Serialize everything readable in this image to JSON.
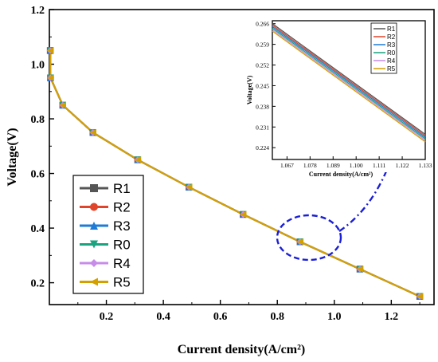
{
  "chart_data": [
    {
      "type": "line",
      "xlabel": "Current density(A/cm²)",
      "ylabel": "Voltage(V)",
      "xlim": [
        0,
        1.35
      ],
      "ylim": [
        0.12,
        1.2
      ],
      "x_ticks": [
        "0.2",
        "0.4",
        "0.6",
        "0.8",
        "1.0",
        "1.2"
      ],
      "y_ticks": [
        "0.2",
        "0.4",
        "0.6",
        "0.8",
        "1.0",
        "1.2"
      ],
      "legend": "bottom-left",
      "x": [
        0.003,
        0.004,
        0.047,
        0.153,
        0.31,
        0.49,
        0.68,
        0.88,
        1.09,
        1.3
      ],
      "series": [
        {
          "name": "R1",
          "color": "#555555",
          "marker": "square",
          "values": [
            1.05,
            0.95,
            0.85,
            0.75,
            0.65,
            0.55,
            0.45,
            0.35,
            0.25,
            0.15
          ]
        },
        {
          "name": "R2",
          "color": "#e0452b",
          "marker": "circle",
          "values": [
            1.05,
            0.95,
            0.85,
            0.75,
            0.65,
            0.55,
            0.45,
            0.35,
            0.25,
            0.15
          ]
        },
        {
          "name": "R3",
          "color": "#1e7bd6",
          "marker": "triangle-up",
          "values": [
            1.05,
            0.95,
            0.85,
            0.75,
            0.65,
            0.55,
            0.45,
            0.35,
            0.25,
            0.15
          ]
        },
        {
          "name": "R0",
          "color": "#1aa37f",
          "marker": "triangle-down",
          "values": [
            1.05,
            0.95,
            0.85,
            0.75,
            0.65,
            0.55,
            0.45,
            0.35,
            0.25,
            0.15
          ]
        },
        {
          "name": "R4",
          "color": "#c78be8",
          "marker": "diamond",
          "values": [
            1.05,
            0.95,
            0.85,
            0.75,
            0.65,
            0.55,
            0.45,
            0.35,
            0.25,
            0.15
          ]
        },
        {
          "name": "R5",
          "color": "#d4a000",
          "marker": "triangle-left",
          "values": [
            1.05,
            0.95,
            0.85,
            0.75,
            0.65,
            0.55,
            0.45,
            0.35,
            0.25,
            0.15
          ]
        }
      ]
    },
    {
      "type": "line",
      "xlabel": "Current density(A/cm²)",
      "ylabel": "Voltage(V)",
      "xlim": [
        1.06,
        1.133
      ],
      "ylim": [
        0.22,
        0.267
      ],
      "x_ticks": [
        "1.067",
        "1.078",
        "1.089",
        "1.100",
        "1.111",
        "1.122",
        "1.133"
      ],
      "y_ticks": [
        "0.224",
        "0.231",
        "0.238",
        "0.245",
        "0.252",
        "0.259",
        "0.266"
      ],
      "legend": "top-right",
      "x": [
        1.06,
        1.133
      ],
      "series": [
        {
          "name": "R1",
          "color": "#555555",
          "values": [
            0.266,
            0.2285
          ]
        },
        {
          "name": "R2",
          "color": "#e0452b",
          "values": [
            0.2655,
            0.228
          ]
        },
        {
          "name": "R3",
          "color": "#1e7bd6",
          "values": [
            0.265,
            0.2275
          ]
        },
        {
          "name": "R0",
          "color": "#1aa37f",
          "values": [
            0.2645,
            0.227
          ]
        },
        {
          "name": "R4",
          "color": "#c78be8",
          "values": [
            0.264,
            0.2265
          ]
        },
        {
          "name": "R5",
          "color": "#d4a000",
          "values": [
            0.2635,
            0.226
          ]
        }
      ]
    }
  ],
  "annotation": {
    "color": "#1b1fd6"
  }
}
